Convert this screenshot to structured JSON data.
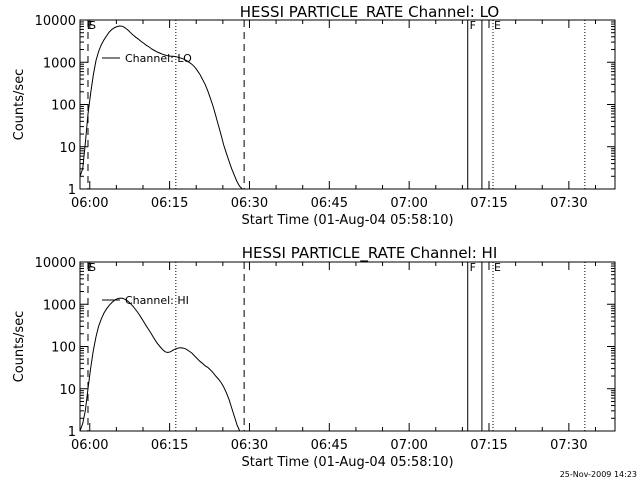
{
  "footer_timestamp": "25-Nov-2009 14:23",
  "chart_data": [
    {
      "type": "line",
      "title": "HESSI PARTICLE_RATE Channel: LO",
      "xlabel": "Start Time (01-Aug-04 05:58:10)",
      "ylabel": "Counts/sec",
      "yscale": "log",
      "ylim": [
        1,
        10000
      ],
      "xlim": [
        "05:58:10",
        "07:38:40"
      ],
      "x_ticks": [
        "06:00",
        "06:15",
        "06:30",
        "06:45",
        "07:00",
        "07:15",
        "07:30"
      ],
      "y_ticks": [
        "1",
        "10",
        "100",
        "1000",
        "10000"
      ],
      "legend": {
        "label": "Channel: LO",
        "placement": "top-left"
      },
      "flags": [
        {
          "label": "E",
          "x": "05:59:15"
        },
        {
          "label": "S",
          "x": "05:59:40"
        },
        {
          "label": "F",
          "x": "07:11:10"
        },
        {
          "label": "E",
          "x": "07:15:45"
        }
      ],
      "vlines": [
        {
          "x": "05:59:40",
          "style": "dashed"
        },
        {
          "x": "06:16:10",
          "style": "dotted"
        },
        {
          "x": "06:29:00",
          "style": "dashed"
        },
        {
          "x": "07:11:00",
          "style": "solid"
        },
        {
          "x": "07:13:40",
          "style": "solid"
        },
        {
          "x": "07:15:45",
          "style": "dotted"
        },
        {
          "x": "07:33:00",
          "style": "dotted"
        }
      ],
      "series": [
        {
          "x": [
            "05:58:10",
            "05:58:40",
            "05:59:10",
            "05:59:40",
            "06:00:10",
            "06:00:40",
            "06:01:10",
            "06:01:40",
            "06:02:10",
            "06:02:40",
            "06:03:10",
            "06:03:40",
            "06:04:10",
            "06:04:40",
            "06:05:10",
            "06:05:40",
            "06:06:10",
            "06:06:40",
            "06:07:10",
            "06:07:40",
            "06:08:10",
            "06:08:40",
            "06:09:10",
            "06:09:40",
            "06:10:10",
            "06:10:40",
            "06:11:10",
            "06:11:40",
            "06:12:10",
            "06:12:40",
            "06:13:10",
            "06:13:40",
            "06:14:10",
            "06:14:40",
            "06:15:10",
            "06:15:40",
            "06:16:10",
            "06:16:40",
            "06:17:10",
            "06:17:40",
            "06:18:10",
            "06:18:40",
            "06:19:10",
            "06:19:40",
            "06:20:10",
            "06:20:40",
            "06:21:10",
            "06:21:40",
            "06:22:10",
            "06:22:40",
            "06:23:10",
            "06:23:40",
            "06:24:10",
            "06:24:40",
            "06:25:10",
            "06:25:40",
            "06:26:10",
            "06:26:40",
            "06:27:10",
            "06:27:40",
            "06:28:10",
            "06:28:40"
          ],
          "values": [
            2,
            3,
            12,
            60,
            180,
            500,
            1100,
            1800,
            2600,
            3400,
            4200,
            5200,
            6000,
            6600,
            7000,
            7200,
            7100,
            6500,
            5800,
            5000,
            4400,
            3900,
            3500,
            3100,
            2800,
            2500,
            2300,
            2050,
            1900,
            1750,
            1650,
            1550,
            1480,
            1420,
            1400,
            1380,
            1350,
            1300,
            1250,
            1180,
            1100,
            1000,
            900,
            780,
            650,
            520,
            400,
            300,
            210,
            140,
            90,
            55,
            32,
            19,
            11,
            7,
            4.5,
            3,
            2.1,
            1.5,
            1.15,
            1
          ]
        }
      ]
    },
    {
      "type": "line",
      "title": "HESSI PARTICLE_RATE Channel: HI",
      "xlabel": "Start Time (01-Aug-04 05:58:10)",
      "ylabel": "Counts/sec",
      "yscale": "log",
      "ylim": [
        1,
        10000
      ],
      "xlim": [
        "05:58:10",
        "07:38:40"
      ],
      "x_ticks": [
        "06:00",
        "06:15",
        "06:30",
        "06:45",
        "07:00",
        "07:15",
        "07:30"
      ],
      "y_ticks": [
        "1",
        "10",
        "100",
        "1000",
        "10000"
      ],
      "legend": {
        "label": "Channel: HI",
        "placement": "top-left"
      },
      "flags": [
        {
          "label": "E",
          "x": "05:59:15"
        },
        {
          "label": "S",
          "x": "05:59:40"
        },
        {
          "label": "F",
          "x": "07:11:10"
        },
        {
          "label": "E",
          "x": "07:15:45"
        }
      ],
      "vlines": [
        {
          "x": "05:59:40",
          "style": "dashed"
        },
        {
          "x": "06:16:10",
          "style": "dotted"
        },
        {
          "x": "06:29:00",
          "style": "dashed"
        },
        {
          "x": "07:11:00",
          "style": "solid"
        },
        {
          "x": "07:13:40",
          "style": "solid"
        },
        {
          "x": "07:15:45",
          "style": "dotted"
        },
        {
          "x": "07:33:00",
          "style": "dotted"
        }
      ],
      "series": [
        {
          "x": [
            "05:58:10",
            "05:58:40",
            "05:59:10",
            "05:59:40",
            "06:00:10",
            "06:00:40",
            "06:01:10",
            "06:01:40",
            "06:02:10",
            "06:02:40",
            "06:03:10",
            "06:03:40",
            "06:04:10",
            "06:04:40",
            "06:05:10",
            "06:05:40",
            "06:06:10",
            "06:06:40",
            "06:07:10",
            "06:07:40",
            "06:08:10",
            "06:08:40",
            "06:09:10",
            "06:09:40",
            "06:10:10",
            "06:10:40",
            "06:11:10",
            "06:11:40",
            "06:12:10",
            "06:12:40",
            "06:13:10",
            "06:13:40",
            "06:14:10",
            "06:14:40",
            "06:15:10",
            "06:15:40",
            "06:16:10",
            "06:16:40",
            "06:17:10",
            "06:17:40",
            "06:18:10",
            "06:18:40",
            "06:19:10",
            "06:19:40",
            "06:20:10",
            "06:20:40",
            "06:21:10",
            "06:21:40",
            "06:22:10",
            "06:22:40",
            "06:23:10",
            "06:23:40",
            "06:24:10",
            "06:24:40",
            "06:25:10",
            "06:25:40",
            "06:26:10",
            "06:26:40",
            "06:27:10",
            "06:27:40",
            "06:28:10"
          ],
          "values": [
            1,
            1.5,
            3,
            10,
            30,
            80,
            170,
            300,
            450,
            620,
            780,
            950,
            1100,
            1250,
            1350,
            1400,
            1380,
            1300,
            1180,
            1030,
            880,
            730,
            600,
            480,
            380,
            300,
            240,
            190,
            150,
            120,
            100,
            85,
            75,
            72,
            75,
            82,
            88,
            92,
            93,
            91,
            86,
            78,
            70,
            60,
            52,
            45,
            40,
            35,
            32,
            28,
            24,
            20,
            17,
            14,
            11,
            8,
            5.5,
            3.5,
            2.2,
            1.4,
            1
          ]
        }
      ]
    }
  ]
}
